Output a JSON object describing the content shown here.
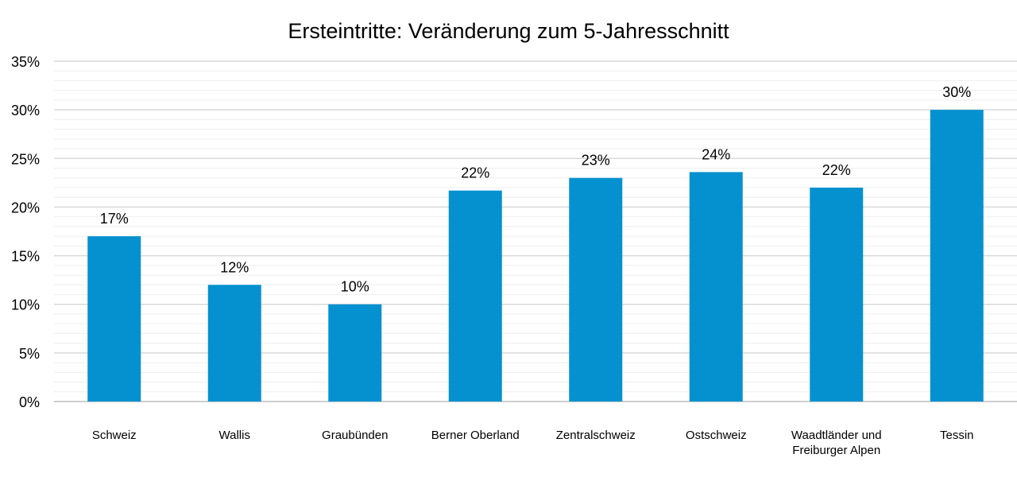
{
  "chart_data": {
    "type": "bar",
    "title": "Ersteintritte: Veränderung zum 5-Jahresschnitt",
    "categories": [
      "Schweiz",
      "Wallis",
      "Graubünden",
      "Berner Oberland",
      "Zentralschweiz",
      "Ostschweiz",
      "Waadtländer und Freiburger Alpen",
      "Tessin"
    ],
    "category_lines": [
      [
        "Schweiz"
      ],
      [
        "Wallis"
      ],
      [
        "Graubünden"
      ],
      [
        "Berner Oberland"
      ],
      [
        "Zentralschweiz"
      ],
      [
        "Ostschweiz"
      ],
      [
        "Waadtländer und",
        "Freiburger Alpen"
      ],
      [
        "Tessin"
      ]
    ],
    "values": [
      0.17,
      0.12,
      0.1,
      0.217,
      0.23,
      0.236,
      0.22,
      0.3
    ],
    "data_labels": [
      "17%",
      "12%",
      "10%",
      "22%",
      "23%",
      "24%",
      "22%",
      "30%"
    ],
    "y_ticks": [
      0,
      0.05,
      0.1,
      0.15,
      0.2,
      0.25,
      0.3,
      0.35
    ],
    "y_tick_labels": [
      "0%",
      "5%",
      "10%",
      "15%",
      "20%",
      "25%",
      "30%",
      "35%"
    ],
    "ylim": [
      0,
      0.35
    ],
    "xlabel": "",
    "ylabel": "",
    "grid": true,
    "minor_grid": true,
    "legend": "none",
    "colors": {
      "bar": "#0591cf",
      "major_grid": "#d9d9d9",
      "minor_grid": "#eeeeee",
      "text": "#000000"
    }
  }
}
